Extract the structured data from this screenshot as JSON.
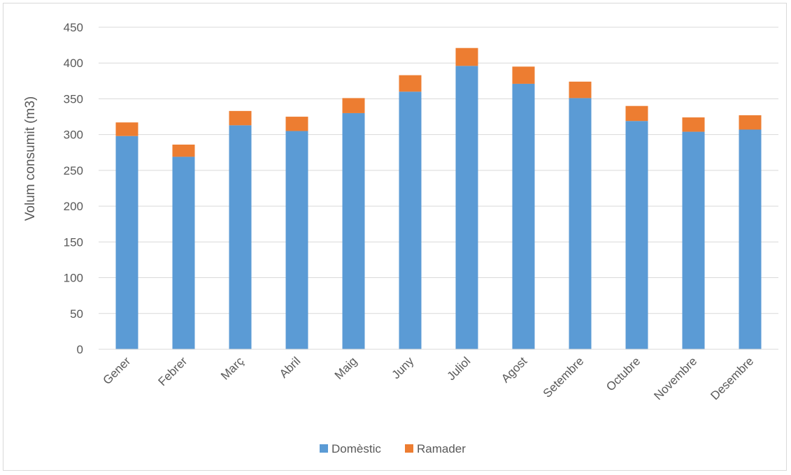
{
  "chart_data": {
    "type": "bar",
    "stacked": true,
    "title": "",
    "xlabel": "",
    "ylabel": "Volum consumit (m3)",
    "ylim": [
      0,
      450
    ],
    "yticks": [
      0,
      50,
      100,
      150,
      200,
      250,
      300,
      350,
      400,
      450
    ],
    "grid": true,
    "legend_position": "bottom",
    "categories": [
      "Gener",
      "Febrer",
      "Març",
      "Abril",
      "Maig",
      "Juny",
      "Juliol",
      "Agost",
      "Setembre",
      "Octubre",
      "Novembre",
      "Desembre"
    ],
    "series": [
      {
        "name": "Domèstic",
        "color": "#5b9bd5",
        "values": [
          298,
          269,
          313,
          305,
          330,
          360,
          396,
          371,
          351,
          319,
          304,
          307
        ]
      },
      {
        "name": "Ramader",
        "color": "#ed7d31",
        "values": [
          19,
          17,
          20,
          20,
          21,
          23,
          25,
          24,
          23,
          21,
          20,
          20
        ]
      }
    ]
  }
}
